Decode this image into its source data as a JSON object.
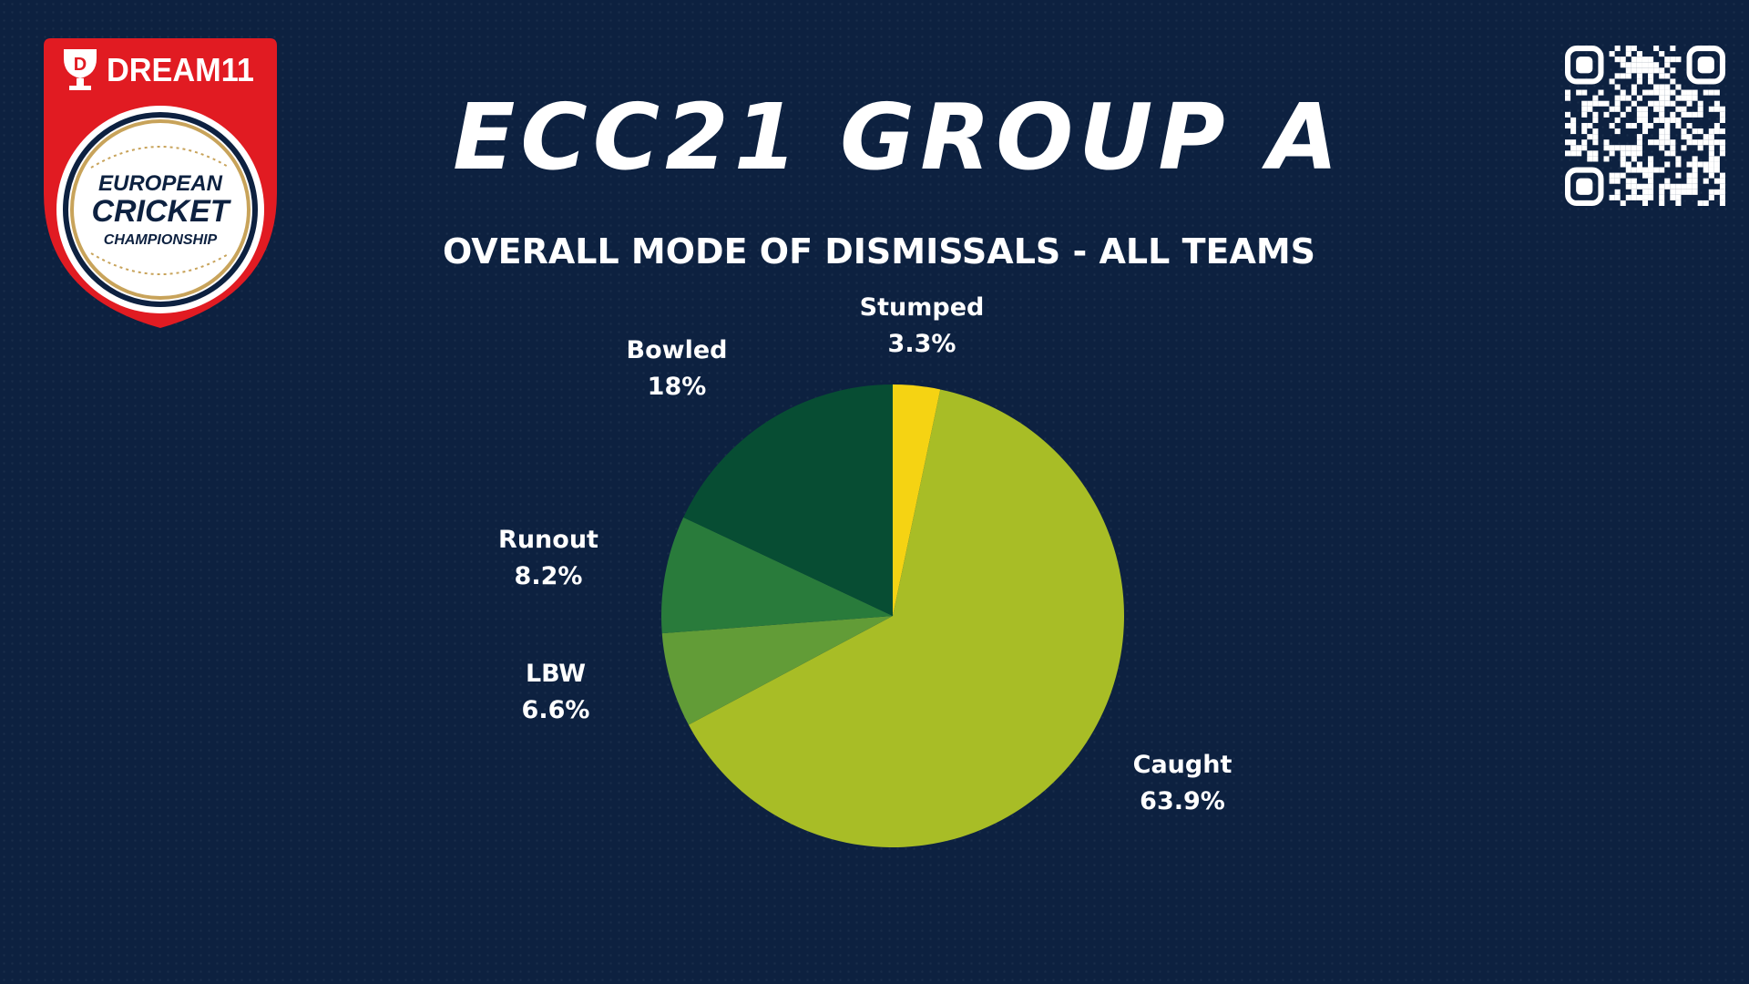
{
  "header": {
    "title": "ECC21 GROUP A",
    "subtitle": "OVERALL MODE OF DISMISSALS - ALL TEAMS"
  },
  "logo": {
    "brand": "DREAM11",
    "line1": "EUROPEAN",
    "line2": "CRICKET",
    "line3": "CHAMPIONSHIP",
    "colors": {
      "red": "#e11b22",
      "navy": "#0d2140",
      "gold": "#c8a35a"
    }
  },
  "qr_code": {
    "icon": "qr-code-icon",
    "color": "#ffffff"
  },
  "chart_data": {
    "type": "pie",
    "title": "OVERALL MODE OF DISMISSALS - ALL TEAMS",
    "start_angle_deg": 0,
    "direction": "clockwise",
    "slices": [
      {
        "label": "Stumped",
        "value": 3.3,
        "display": "3.3%",
        "color": "#f5d313"
      },
      {
        "label": "Caught",
        "value": 63.9,
        "display": "63.9%",
        "color": "#a8bd26"
      },
      {
        "label": "LBW",
        "value": 6.6,
        "display": "6.6%",
        "color": "#629c37"
      },
      {
        "label": "Runout",
        "value": 8.2,
        "display": "8.2%",
        "color": "#297b3b"
      },
      {
        "label": "Bowled",
        "value": 18,
        "display": "18%",
        "color": "#074d33"
      }
    ]
  }
}
